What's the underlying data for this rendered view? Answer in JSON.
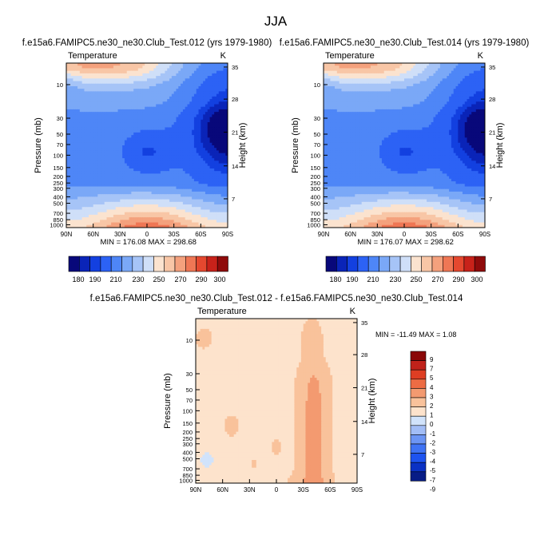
{
  "season": "JJA",
  "colors": {
    "abs_palette": [
      "#08087a",
      "#0a24b8",
      "#1340e0",
      "#2c62f5",
      "#4e86f7",
      "#7aa8f7",
      "#a6c4f7",
      "#cfdff8",
      "#fbe3cf",
      "#f8c6a6",
      "#f4a17d",
      "#ef7755",
      "#e5482f",
      "#c8221a",
      "#8f0b0b"
    ],
    "diff_palette": [
      "#071c86",
      "#0a31c4",
      "#1d53f0",
      "#3f73f4",
      "#6c95f4",
      "#a2bdf6",
      "#d1e3fb",
      "#fde3cc",
      "#f9c29b",
      "#f39a70",
      "#ed6c44",
      "#de3e23",
      "#c0221a",
      "#8a0808"
    ]
  },
  "chart_data": [
    {
      "type": "heatmap",
      "title": "f.e15a6.FAMIPC5.ne30_ne30.Club_Test.012 (yrs 1979-1980)",
      "left_label": "Temperature",
      "right_label": "K",
      "ylabel": "Pressure (mb)",
      "ylabel_right": "Height (km)",
      "x_ticks": [
        "90N",
        "60N",
        "30N",
        "0",
        "30S",
        "60S",
        "90S"
      ],
      "pressure_ticks": [
        "10",
        "30",
        "50",
        "70",
        "100",
        "150",
        "200",
        "250",
        "300",
        "400",
        "500",
        "700",
        "850",
        "1000"
      ],
      "height_ticks": [
        "35",
        "28",
        "21",
        "14",
        "7"
      ],
      "min_text": "MIN = 176.08  MAX = 298.68",
      "colorbar_labels": [
        "180",
        "190",
        "210",
        "230",
        "250",
        "270",
        "290",
        "300"
      ]
    },
    {
      "type": "heatmap",
      "title": "f.e15a6.FAMIPC5.ne30_ne30.Club_Test.014 (yrs 1979-1980)",
      "left_label": "Temperature",
      "right_label": "K",
      "ylabel": "Pressure (mb)",
      "ylabel_right": "Height (km)",
      "x_ticks": [
        "90N",
        "60N",
        "30N",
        "0",
        "30S",
        "60S",
        "90S"
      ],
      "pressure_ticks": [
        "10",
        "30",
        "50",
        "70",
        "100",
        "150",
        "200",
        "250",
        "300",
        "400",
        "500",
        "700",
        "850",
        "1000"
      ],
      "height_ticks": [
        "35",
        "28",
        "21",
        "14",
        "7"
      ],
      "min_text": "MIN = 176.07  MAX = 298.62",
      "colorbar_labels": [
        "180",
        "190",
        "210",
        "230",
        "250",
        "270",
        "290",
        "300"
      ]
    },
    {
      "type": "heatmap",
      "title": "f.e15a6.FAMIPC5.ne30_ne30.Club_Test.012 - f.e15a6.FAMIPC5.ne30_ne30.Club_Test.014",
      "left_label": "Temperature",
      "right_label": "K",
      "ylabel": "Pressure (mb)",
      "ylabel_right": "Height (km)",
      "x_ticks": [
        "90N",
        "60N",
        "30N",
        "0",
        "30S",
        "60S",
        "90S"
      ],
      "pressure_ticks": [
        "10",
        "30",
        "50",
        "70",
        "100",
        "150",
        "200",
        "250",
        "300",
        "400",
        "500",
        "700",
        "850",
        "1000"
      ],
      "height_ticks": [
        "35",
        "28",
        "21",
        "14",
        "7"
      ],
      "min_text": "MIN = -11.49  MAX =   1.08",
      "colorbar_labels": [
        "9",
        "7",
        "5",
        "4",
        "3",
        "2",
        "1",
        "0",
        "-1",
        "-2",
        "-3",
        "-4",
        "-5",
        "-7",
        "-9"
      ]
    }
  ]
}
